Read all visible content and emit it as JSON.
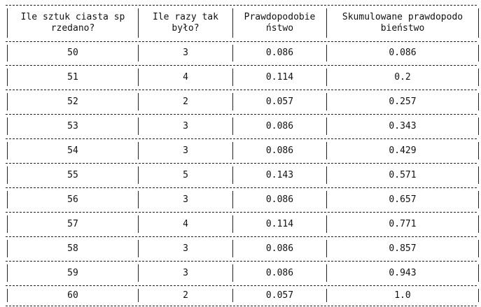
{
  "table": {
    "headers": [
      "Ile sztuk ciasta sp\nrzedano?",
      "Ile razy tak\nbyło?",
      "Prawdopodobie\nństwo",
      "Skumulowane prawdopodo\nbieństwo"
    ],
    "rows": [
      [
        "50",
        "3",
        "0.086",
        "0.086"
      ],
      [
        "51",
        "4",
        "0.114",
        "0.2"
      ],
      [
        "52",
        "2",
        "0.057",
        "0.257"
      ],
      [
        "53",
        "3",
        "0.086",
        "0.343"
      ],
      [
        "54",
        "3",
        "0.086",
        "0.429"
      ],
      [
        "55",
        "5",
        "0.143",
        "0.571"
      ],
      [
        "56",
        "3",
        "0.086",
        "0.657"
      ],
      [
        "57",
        "4",
        "0.114",
        "0.771"
      ],
      [
        "58",
        "3",
        "0.086",
        "0.857"
      ],
      [
        "59",
        "3",
        "0.086",
        "0.943"
      ],
      [
        "60",
        "2",
        "0.057",
        "1.0"
      ]
    ]
  }
}
